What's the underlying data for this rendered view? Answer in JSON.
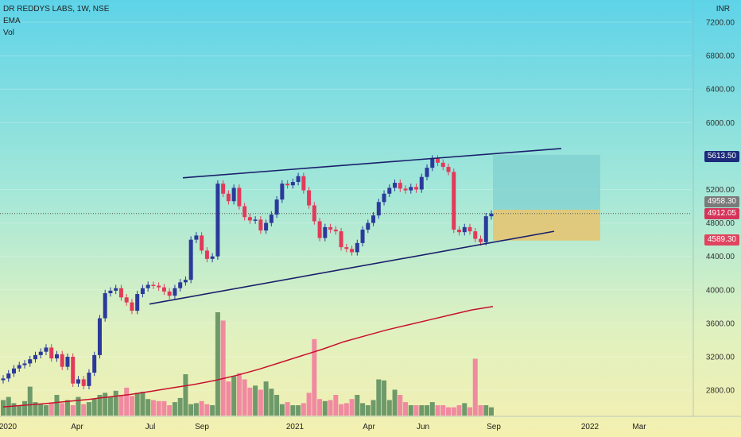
{
  "header": {
    "symbol": "DR REDDYS LABS, 1W, NSE",
    "indicator_ema": "EMA",
    "indicator_vol": "Vol"
  },
  "currency": "INR",
  "price_tags": {
    "target": "5613.50",
    "entry_high": "4958.30",
    "current": "4912.05",
    "stop": "4589.30"
  },
  "colors": {
    "up": "#2b3a9a",
    "down": "#e23a5a",
    "ema": "#c8102e",
    "trend": "#1a1f6b",
    "vol_up": "#6e9a6a",
    "vol_down": "#f08aa0",
    "target_zone": "#7ecfd0",
    "stop_zone": "#e7c36d"
  },
  "chart_data": {
    "type": "candlestick",
    "y_axis": {
      "min": 2600,
      "max": 7200,
      "ticks": [
        7200,
        6800,
        6400,
        6000,
        5200,
        4800,
        4400,
        4000,
        3600,
        3200,
        2800
      ],
      "unit": "INR"
    },
    "x_axis": {
      "labels": [
        "2020",
        "Apr",
        "Jul",
        "Sep",
        "2021",
        "Apr",
        "Jun",
        "Sep",
        "2022",
        "Mar"
      ]
    },
    "closes": [
      2940,
      3000,
      3060,
      3100,
      3120,
      3170,
      3220,
      3260,
      3310,
      3180,
      3230,
      3080,
      3200,
      2880,
      2930,
      2850,
      3010,
      3220,
      3660,
      3960,
      3990,
      4020,
      3910,
      3850,
      3750,
      3950,
      4020,
      4060,
      4050,
      4030,
      3980,
      3930,
      4020,
      4090,
      4120,
      4600,
      4650,
      4470,
      4370,
      4400,
      5270,
      5150,
      5060,
      5220,
      5000,
      4870,
      4830,
      4840,
      4710,
      4800,
      4900,
      5080,
      5270,
      5250,
      5290,
      5360,
      5190,
      5010,
      4820,
      4620,
      4750,
      4720,
      4700,
      4510,
      4490,
      4450,
      4560,
      4720,
      4800,
      4890,
      5050,
      5150,
      5220,
      5280,
      5210,
      5190,
      5230,
      5200,
      5350,
      5460,
      5570,
      5520,
      5470,
      5410,
      4720,
      4690,
      4750,
      4700,
      4610,
      4570,
      4880,
      4912
    ],
    "ema": [
      2600,
      2620,
      2640,
      2665,
      2690,
      2720,
      2750,
      2790,
      2830,
      2870,
      2920,
      2980,
      3050,
      3130,
      3210,
      3290,
      3380,
      3450,
      3520,
      3580,
      3640,
      3700,
      3760,
      3800
    ],
    "volume": [
      0.15,
      0.18,
      0.12,
      0.1,
      0.14,
      0.28,
      0.13,
      0.11,
      0.1,
      0.12,
      0.2,
      0.12,
      0.15,
      0.1,
      0.18,
      0.11,
      0.13,
      0.16,
      0.2,
      0.22,
      0.18,
      0.24,
      0.2,
      0.27,
      0.19,
      0.22,
      0.23,
      0.16,
      0.15,
      0.14,
      0.14,
      0.1,
      0.13,
      0.17,
      0.4,
      0.11,
      0.12,
      0.14,
      0.11,
      0.1,
      1.0,
      0.92,
      0.33,
      0.38,
      0.41,
      0.35,
      0.27,
      0.29,
      0.25,
      0.33,
      0.26,
      0.2,
      0.11,
      0.13,
      0.1,
      0.1,
      0.12,
      0.22,
      0.74,
      0.16,
      0.14,
      0.15,
      0.2,
      0.11,
      0.12,
      0.16,
      0.2,
      0.12,
      0.1,
      0.15,
      0.35,
      0.34,
      0.15,
      0.25,
      0.2,
      0.13,
      0.1,
      0.1,
      0.1,
      0.1,
      0.13,
      0.1,
      0.1,
      0.08,
      0.08,
      0.1,
      0.12,
      0.08,
      0.55,
      0.1,
      0.1,
      0.08
    ],
    "drawings": [
      {
        "type": "trendline",
        "from": [
          230,
          5340
        ],
        "to": [
          706,
          5690
        ]
      },
      {
        "type": "trendline",
        "from": [
          188,
          3830
        ],
        "to": [
          697,
          4700
        ]
      },
      {
        "type": "zone",
        "kind": "target",
        "top": 5613.5,
        "bottom": 4958.3
      },
      {
        "type": "zone",
        "kind": "stop",
        "top": 4958.3,
        "bottom": 4589.3
      }
    ]
  }
}
